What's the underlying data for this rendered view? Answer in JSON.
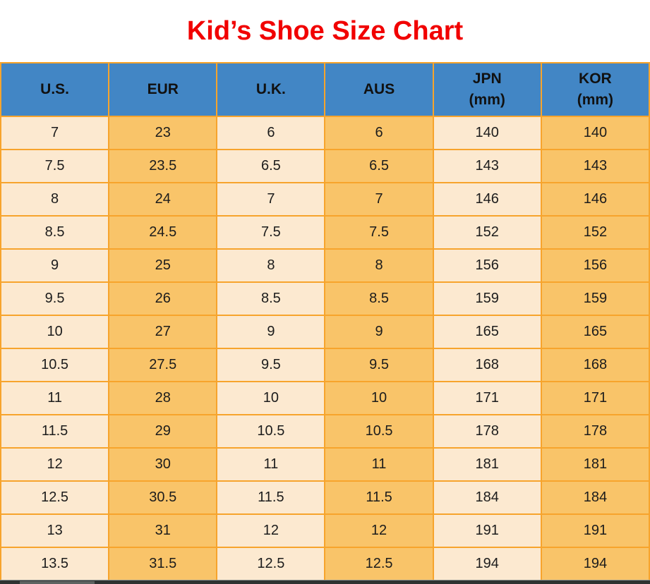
{
  "title": {
    "text": "Kid’s Shoe Size Chart",
    "color": "#f10000"
  },
  "colors": {
    "header_bg": "#4286c5",
    "grid_border": "#f7a42c",
    "column_light": "#fce9d0",
    "column_orange": "#f9c469",
    "cell_text": "#1c1c1c",
    "title_red": "#f10000"
  },
  "table": {
    "headers": [
      {
        "key": "us",
        "line1": "U.S.",
        "line2": ""
      },
      {
        "key": "eur",
        "line1": "EUR",
        "line2": ""
      },
      {
        "key": "uk",
        "line1": "U.K.",
        "line2": ""
      },
      {
        "key": "aus",
        "line1": "AUS",
        "line2": ""
      },
      {
        "key": "jpn",
        "line1": "JPN",
        "line2": "(mm)"
      },
      {
        "key": "kor",
        "line1": "KOR",
        "line2": "(mm)"
      }
    ],
    "rows": [
      [
        "7",
        "23",
        "6",
        "6",
        "140",
        "140"
      ],
      [
        "7.5",
        "23.5",
        "6.5",
        "6.5",
        "143",
        "143"
      ],
      [
        "8",
        "24",
        "7",
        "7",
        "146",
        "146"
      ],
      [
        "8.5",
        "24.5",
        "7.5",
        "7.5",
        "152",
        "152"
      ],
      [
        "9",
        "25",
        "8",
        "8",
        "156",
        "156"
      ],
      [
        "9.5",
        "26",
        "8.5",
        "8.5",
        "159",
        "159"
      ],
      [
        "10",
        "27",
        "9",
        "9",
        "165",
        "165"
      ],
      [
        "10.5",
        "27.5",
        "9.5",
        "9.5",
        "168",
        "168"
      ],
      [
        "11",
        "28",
        "10",
        "10",
        "171",
        "171"
      ],
      [
        "11.5",
        "29",
        "10.5",
        "10.5",
        "178",
        "178"
      ],
      [
        "12",
        "30",
        "11",
        "11",
        "181",
        "181"
      ],
      [
        "12.5",
        "30.5",
        "11.5",
        "11.5",
        "184",
        "184"
      ],
      [
        "13",
        "31",
        "12",
        "12",
        "191",
        "191"
      ],
      [
        "13.5",
        "31.5",
        "12.5",
        "12.5",
        "194",
        "194"
      ]
    ]
  },
  "chart_data": {
    "type": "table",
    "title": "Kid’s Shoe Size Chart",
    "columns": [
      "U.S.",
      "EUR",
      "U.K.",
      "AUS",
      "JPN (mm)",
      "KOR (mm)"
    ],
    "rows": [
      [
        7,
        23,
        6,
        6,
        140,
        140
      ],
      [
        7.5,
        23.5,
        6.5,
        6.5,
        143,
        143
      ],
      [
        8,
        24,
        7,
        7,
        146,
        146
      ],
      [
        8.5,
        24.5,
        7.5,
        7.5,
        152,
        152
      ],
      [
        9,
        25,
        8,
        8,
        156,
        156
      ],
      [
        9.5,
        26,
        8.5,
        8.5,
        159,
        159
      ],
      [
        10,
        27,
        9,
        9,
        165,
        165
      ],
      [
        10.5,
        27.5,
        9.5,
        9.5,
        168,
        168
      ],
      [
        11,
        28,
        10,
        10,
        171,
        171
      ],
      [
        11.5,
        29,
        10.5,
        10.5,
        178,
        178
      ],
      [
        12,
        30,
        11,
        11,
        181,
        181
      ],
      [
        12.5,
        30.5,
        11.5,
        11.5,
        184,
        184
      ],
      [
        13,
        31,
        12,
        12,
        191,
        191
      ],
      [
        13.5,
        31.5,
        12.5,
        12.5,
        194,
        194
      ]
    ],
    "layout_hints": {
      "header_background": "#4286c5",
      "alternating_column_colors": [
        "#fce9d0",
        "#f9c469"
      ],
      "grid": true,
      "grid_color": "#f7a42c"
    }
  }
}
